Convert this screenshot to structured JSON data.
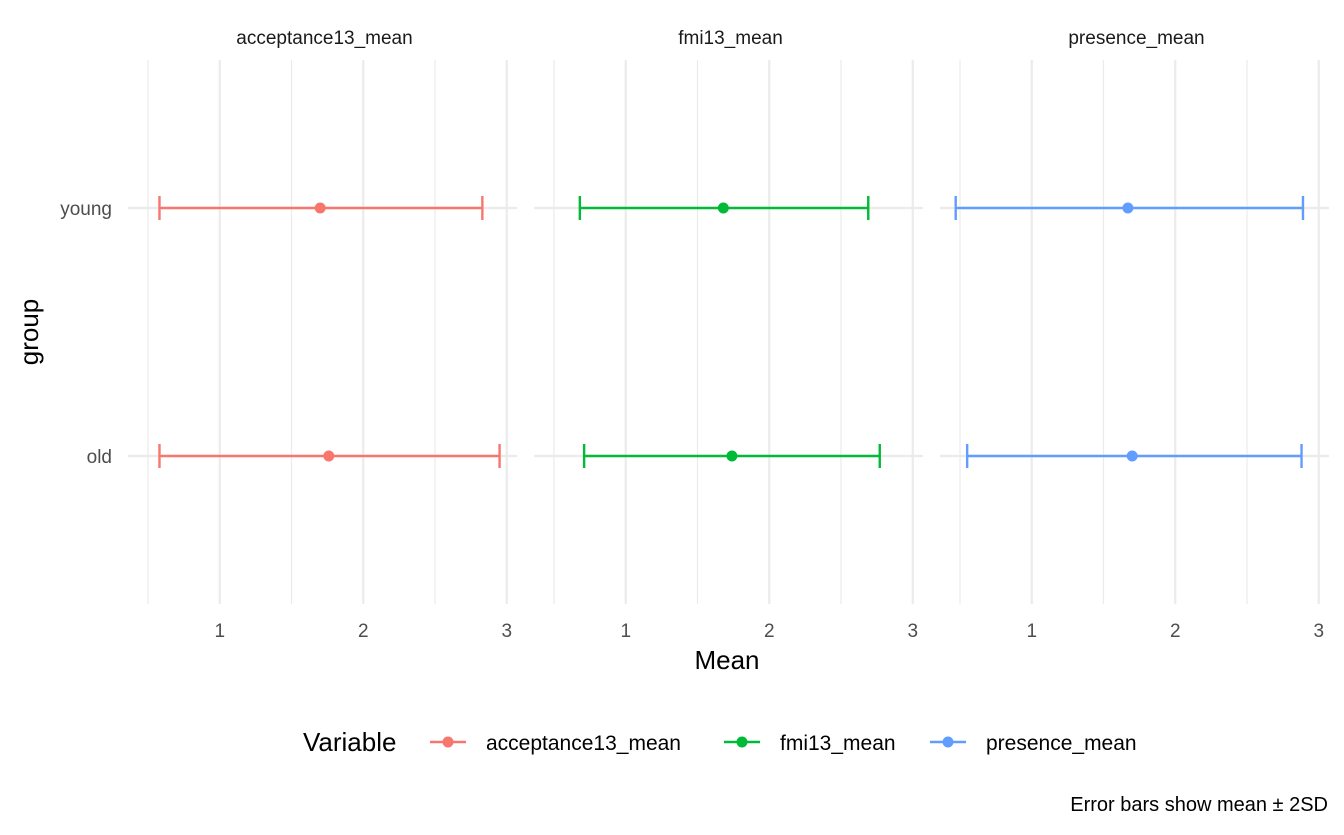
{
  "chart_data": {
    "type": "errorbar-faceted",
    "facets": [
      "acceptance13_mean",
      "fmi13_mean",
      "presence_mean"
    ],
    "categories": [
      "young",
      "old"
    ],
    "xlabel": "Mean",
    "ylabel": "group",
    "xlim": [
      0.5,
      3.05
    ],
    "xticks": [
      1,
      2,
      3
    ],
    "grid": true,
    "legend": {
      "title": "Variable",
      "position": "bottom",
      "entries": [
        "acceptance13_mean",
        "fmi13_mean",
        "presence_mean"
      ]
    },
    "caption": "Error bars show mean ± 2SD",
    "series": [
      {
        "name": "acceptance13_mean",
        "color": "#F8766D",
        "points": [
          {
            "group": "young",
            "mean": 1.7,
            "lower": 0.58,
            "upper": 2.83
          },
          {
            "group": "old",
            "mean": 1.76,
            "lower": 0.58,
            "upper": 2.95
          }
        ]
      },
      {
        "name": "fmi13_mean",
        "color": "#00BA38",
        "points": [
          {
            "group": "young",
            "mean": 1.68,
            "lower": 0.68,
            "upper": 2.69
          },
          {
            "group": "old",
            "mean": 1.74,
            "lower": 0.71,
            "upper": 2.77
          }
        ]
      },
      {
        "name": "presence_mean",
        "color": "#619CFF",
        "points": [
          {
            "group": "young",
            "mean": 1.67,
            "lower": 0.47,
            "upper": 2.89
          },
          {
            "group": "old",
            "mean": 1.7,
            "lower": 0.55,
            "upper": 2.88
          }
        ]
      }
    ]
  }
}
